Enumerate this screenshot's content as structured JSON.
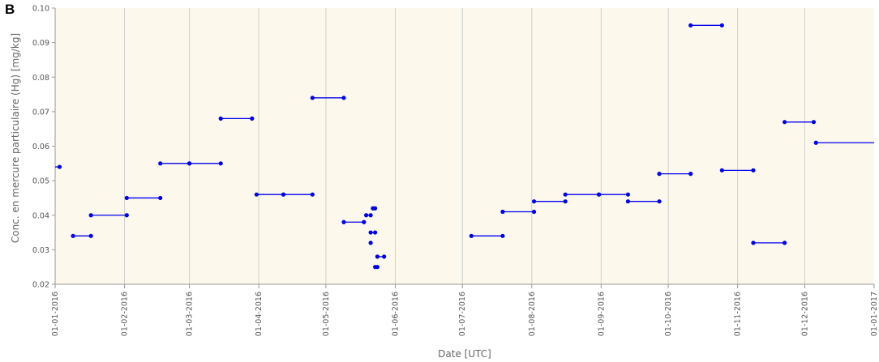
{
  "panel_label": "B",
  "colors": {
    "plot_bg": "#fcf8ec",
    "grid": "#cfcfcf",
    "series": "#0000ee",
    "axis": "#999999"
  },
  "chart_data": {
    "type": "scatter",
    "title": "",
    "xlabel": "Date [UTC]",
    "ylabel": "Conc. en mercure particulaire (Hg) [mg/kg]",
    "x_scale": "date",
    "xlim": [
      "2016-01-01",
      "2017-01-01"
    ],
    "ylim": [
      0.02,
      0.1
    ],
    "y_ticks": [
      "0.02",
      "0.03",
      "0.04",
      "0.05",
      "0.06",
      "0.07",
      "0.08",
      "0.09",
      "0.10"
    ],
    "x_ticks": [
      "01-01-2016",
      "01-02-2016",
      "01-03-2016",
      "01-04-2016",
      "01-05-2016",
      "01-06-2016",
      "01-07-2016",
      "01-08-2016",
      "01-09-2016",
      "01-10-2016",
      "01-11-2016",
      "01-12-2016",
      "01-01-2017"
    ],
    "grid": "vertical",
    "legend": "none",
    "series": [
      {
        "segments": [
          {
            "x1": "2015-12-24",
            "x2": "2016-01-03",
            "y": 0.054
          },
          {
            "x1": "2016-01-09",
            "x2": "2016-01-17",
            "y": 0.034
          },
          {
            "x1": "2016-01-17",
            "x2": "2016-02-02",
            "y": 0.04
          },
          {
            "x1": "2016-02-02",
            "x2": "2016-02-17",
            "y": 0.045
          },
          {
            "x1": "2016-02-17",
            "x2": "2016-03-01",
            "y": 0.055
          },
          {
            "x1": "2016-03-01",
            "x2": "2016-03-15",
            "y": 0.055
          },
          {
            "x1": "2016-03-15",
            "x2": "2016-03-29",
            "y": 0.068
          },
          {
            "x1": "2016-03-31",
            "x2": "2016-04-12",
            "y": 0.046
          },
          {
            "x1": "2016-04-12",
            "x2": "2016-04-25",
            "y": 0.046
          },
          {
            "x1": "2016-04-25",
            "x2": "2016-05-09",
            "y": 0.074
          },
          {
            "x1": "2016-05-09",
            "x2": "2016-05-18",
            "y": 0.038
          },
          {
            "x1": "2016-05-19",
            "x2": "2016-05-21",
            "y": 0.04
          },
          {
            "x1": "2016-05-22",
            "x2": "2016-05-23",
            "y": 0.042
          },
          {
            "x1": "2016-05-21",
            "x2": "2016-05-23",
            "y": 0.035
          },
          {
            "x1": "2016-05-21",
            "x2": "2016-05-21",
            "y": 0.032
          },
          {
            "x1": "2016-05-23",
            "x2": "2016-05-24",
            "y": 0.025
          },
          {
            "x1": "2016-05-24",
            "x2": "2016-05-27",
            "y": 0.028
          },
          {
            "x1": "2016-07-05",
            "x2": "2016-07-19",
            "y": 0.034
          },
          {
            "x1": "2016-07-19",
            "x2": "2016-08-02",
            "y": 0.041
          },
          {
            "x1": "2016-08-02",
            "x2": "2016-08-16",
            "y": 0.044
          },
          {
            "x1": "2016-08-16",
            "x2": "2016-08-31",
            "y": 0.046
          },
          {
            "x1": "2016-08-31",
            "x2": "2016-09-13",
            "y": 0.046
          },
          {
            "x1": "2016-09-13",
            "x2": "2016-09-27",
            "y": 0.044
          },
          {
            "x1": "2016-09-27",
            "x2": "2016-10-11",
            "y": 0.052
          },
          {
            "x1": "2016-10-11",
            "x2": "2016-10-25",
            "y": 0.095
          },
          {
            "x1": "2016-10-25",
            "x2": "2016-11-08",
            "y": 0.053
          },
          {
            "x1": "2016-11-08",
            "x2": "2016-11-22",
            "y": 0.032
          },
          {
            "x1": "2016-11-22",
            "x2": "2016-12-05",
            "y": 0.067
          },
          {
            "x1": "2016-12-06",
            "x2": "2017-01-01",
            "y": 0.061,
            "open_end": true
          }
        ]
      }
    ]
  }
}
